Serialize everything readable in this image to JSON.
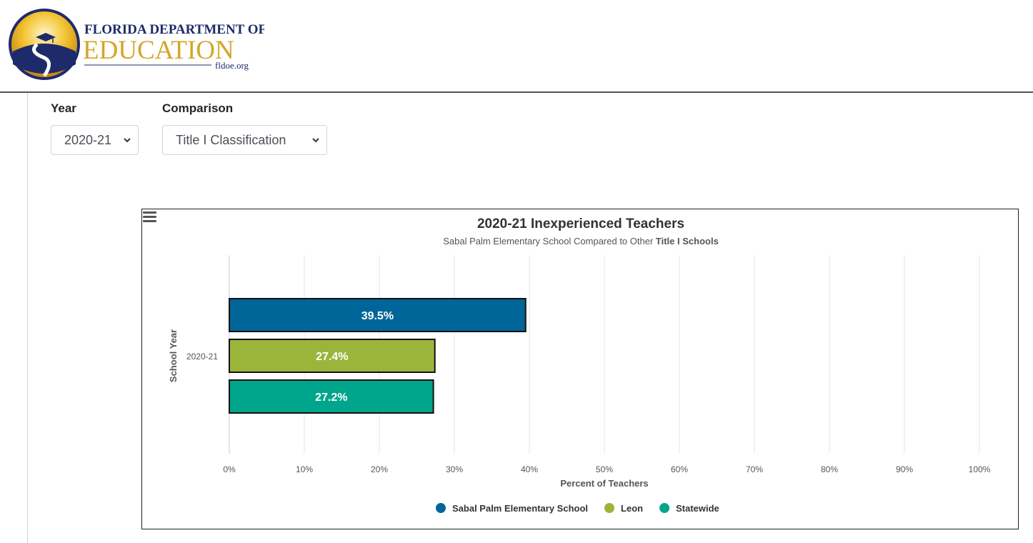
{
  "header": {
    "logo_line1": "FLORIDA DEPARTMENT OF",
    "logo_line2": "EDUCATION",
    "logo_url_text": "fldoe.org"
  },
  "filters": {
    "year_label": "Year",
    "year_value": "2020-21",
    "comparison_label": "Comparison",
    "comparison_value": "Title I Classification"
  },
  "chart_data": {
    "type": "bar",
    "orientation": "horizontal",
    "title": "2020-21 Inexperienced Teachers",
    "subtitle_prefix": "Sabal Palm Elementary School Compared to Other ",
    "subtitle_bold": "Title I Schools",
    "categories": [
      "2020-21"
    ],
    "xlabel": "Percent of Teachers",
    "ylabel": "School Year",
    "xlim": [
      0,
      100
    ],
    "xticks": [
      0,
      10,
      20,
      30,
      40,
      50,
      60,
      70,
      80,
      90,
      100
    ],
    "tick_suffix": "%",
    "grid": true,
    "legend_position": "bottom",
    "series": [
      {
        "name": "Sabal Palm Elementary School",
        "values": [
          39.5
        ],
        "label": "39.5%",
        "color": "#006699"
      },
      {
        "name": "Leon",
        "values": [
          27.4
        ],
        "label": "27.4%",
        "color": "#9bb53a"
      },
      {
        "name": "Statewide",
        "values": [
          27.2
        ],
        "label": "27.2%",
        "color": "#00a68b"
      }
    ]
  }
}
